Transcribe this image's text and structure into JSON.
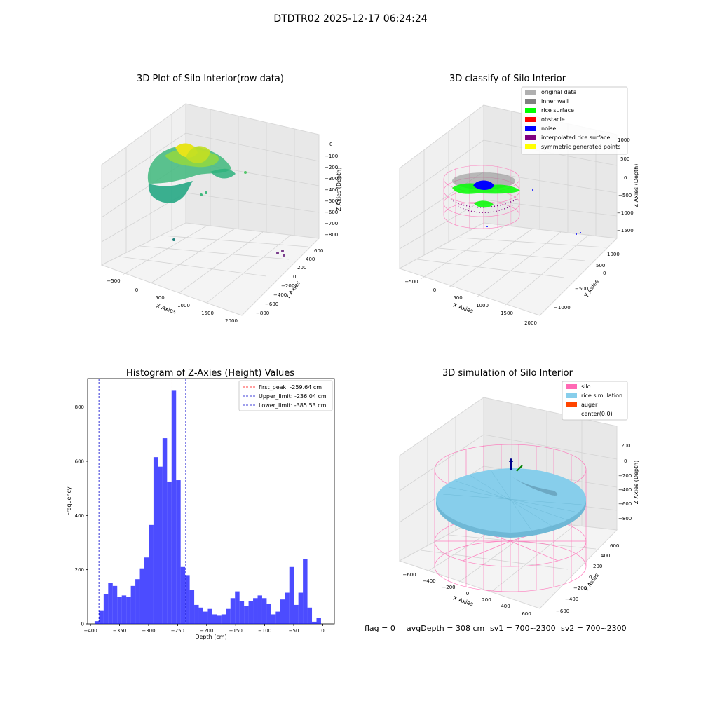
{
  "suptitle": "DTDTR02 2025-12-17 06:24:24",
  "footer": {
    "flag": "flag = 0",
    "avg_depth": "avgDepth = 308 cm",
    "sv1": "sv1 = 700~2300",
    "sv2": "sv2 = 700~2300"
  },
  "chart_data": [
    {
      "type": "scatter",
      "title": "3D Plot of Silo Interior(row data)",
      "xlabel": "X Axies",
      "ylabel": "Y Axies",
      "zlabel": "Z Axies (Depth)",
      "x_ticks": [
        "−500",
        "0",
        "500",
        "1000",
        "1500",
        "2000"
      ],
      "y_ticks": [
        "−800",
        "−600",
        "−400",
        "−200",
        "0",
        "200",
        "400",
        "600"
      ],
      "z_ticks": [
        "0",
        "−100",
        "−200",
        "−300",
        "−400",
        "−500",
        "−600",
        "−700",
        "−800"
      ],
      "colormap": "viridis"
    },
    {
      "type": "scatter",
      "title": "3D classify of Silo Interior",
      "xlabel": "X Axies",
      "ylabel": "Y Axies",
      "zlabel": "Z Axies (Depth)",
      "x_ticks": [
        "−500",
        "0",
        "500",
        "1000",
        "1500",
        "2000"
      ],
      "y_ticks": [
        "−1000",
        "−500",
        "0",
        "500",
        "1000"
      ],
      "z_ticks": [
        "1000",
        "500",
        "0",
        "−500",
        "−1000",
        "−1500"
      ],
      "legend_position": "top-right",
      "legend": [
        {
          "label": "original data",
          "color": "#b0b0b0"
        },
        {
          "label": "inner wall",
          "color": "#808080"
        },
        {
          "label": "rice surface",
          "color": "#00ff00"
        },
        {
          "label": "obstacle",
          "color": "#ff0000"
        },
        {
          "label": "noise",
          "color": "#0000ff"
        },
        {
          "label": "interpolated rice surface",
          "color": "#800080"
        },
        {
          "label": "symmetric generated points",
          "color": "#ffff00"
        }
      ]
    },
    {
      "type": "bar",
      "title": "Histogram of Z-Axies (Height) Values",
      "xlabel": "Depth (cm)",
      "ylabel": "Frequency",
      "xlim": [
        -405,
        20
      ],
      "ylim": [
        0,
        905
      ],
      "x_ticks": [
        -400,
        -350,
        -300,
        -250,
        -200,
        -150,
        -100,
        -50,
        0
      ],
      "y_ticks": [
        0,
        200,
        400,
        600,
        800
      ],
      "bar_color": "#0000ff",
      "bins": {
        "start": -393,
        "width": 7.8,
        "values": [
          10,
          50,
          110,
          150,
          140,
          100,
          105,
          100,
          140,
          165,
          205,
          245,
          365,
          615,
          580,
          685,
          525,
          860,
          530,
          210,
          180,
          125,
          70,
          60,
          45,
          55,
          35,
          30,
          35,
          55,
          95,
          120,
          85,
          65,
          85,
          95,
          105,
          95,
          75,
          35,
          45,
          90,
          115,
          210,
          70,
          115,
          240,
          60,
          8,
          22
        ]
      },
      "vlines": [
        {
          "label": "first_peak: -259.64 cm",
          "value": -259.64,
          "color": "#ff0000"
        },
        {
          "label": "Upper_limit: -236.04 cm",
          "value": -236.04,
          "color": "#0000cc"
        },
        {
          "label": "Lower_limit: -385.53 cm",
          "value": -385.53,
          "color": "#0000cc"
        }
      ],
      "legend_position": "top-right"
    },
    {
      "type": "surface",
      "title": "3D simulation of Silo Interior",
      "xlabel": "X Axies",
      "ylabel": "Y Axies",
      "zlabel": "Z Axies (Depth)",
      "x_ticks": [
        "−600",
        "−400",
        "−200",
        "0",
        "200",
        "400",
        "600"
      ],
      "y_ticks": [
        "−600",
        "−400",
        "−200",
        "0",
        "200",
        "400",
        "600"
      ],
      "z_ticks": [
        "200",
        "0",
        "−200",
        "−400",
        "−600",
        "−800"
      ],
      "legend_position": "top-right",
      "legend": [
        {
          "label": "silo",
          "color": "#ff69b4"
        },
        {
          "label": "rice simulation",
          "color": "#87ceeb"
        },
        {
          "label": "auger",
          "color": "#ff4500"
        },
        {
          "label": "center(0,0)",
          "color": "#ffffff"
        }
      ]
    }
  ]
}
